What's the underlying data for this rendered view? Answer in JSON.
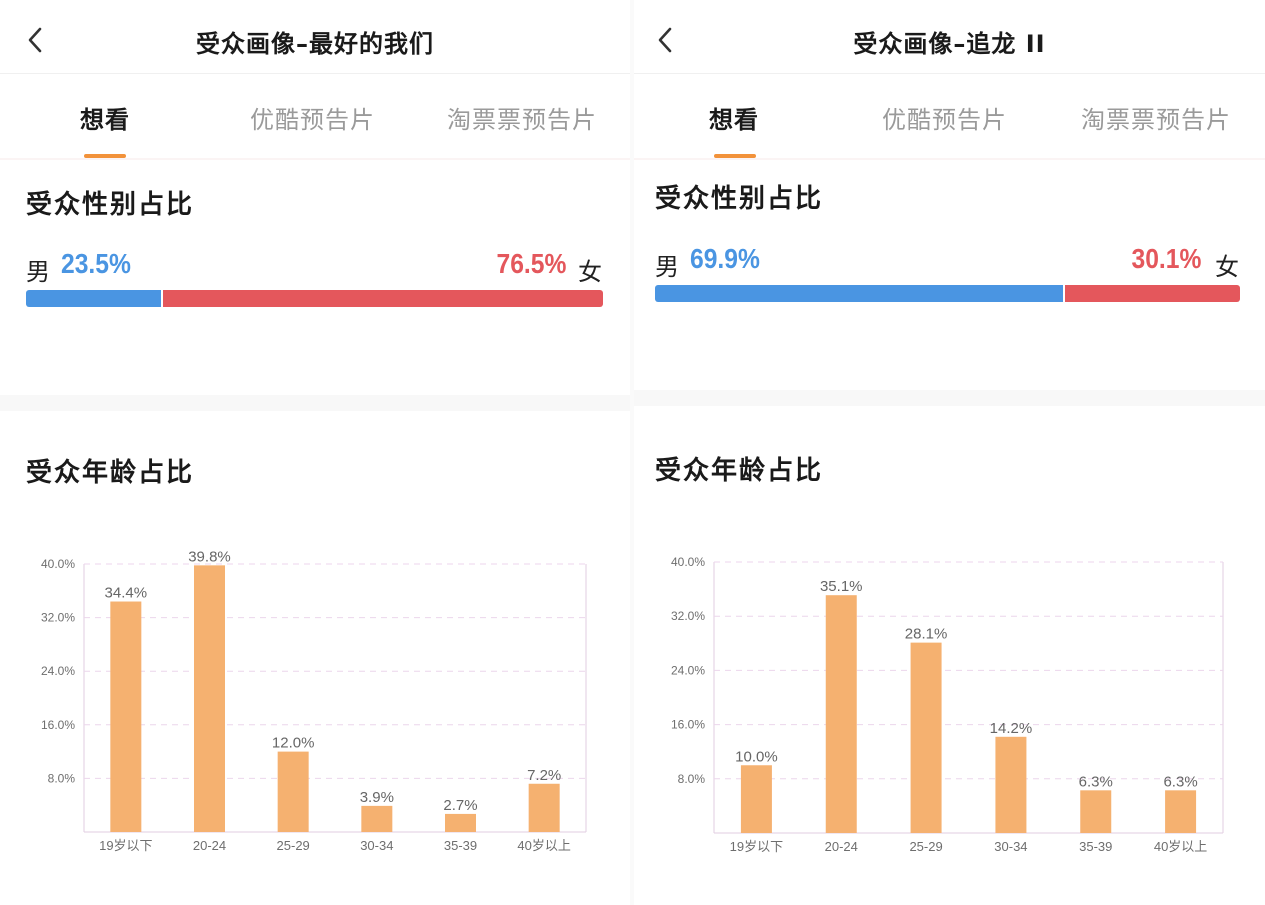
{
  "panels": [
    {
      "title": "受众画像–最好的我们",
      "tabs": [
        {
          "label": "想看",
          "active": true
        },
        {
          "label": "优酷预告片",
          "active": false
        },
        {
          "label": "淘票票预告片",
          "active": false
        }
      ],
      "gender": {
        "title": "受众性别占比",
        "male_label": "男",
        "male_value": "23.5%",
        "male_share": 0.235,
        "female_label": "女",
        "female_value": "76.5%",
        "female_share": 0.765
      },
      "age_title": "受众年龄占比",
      "chart_data": {
        "type": "bar",
        "categories": [
          "19岁以下",
          "20-24",
          "25-29",
          "30-34",
          "35-39",
          "40岁以上"
        ],
        "values": [
          34.4,
          39.8,
          12.0,
          3.9,
          2.7,
          7.2
        ],
        "data_labels": [
          "34.4%",
          "39.8%",
          "12.0%",
          "3.9%",
          "2.7%",
          "7.2%"
        ],
        "yticks": [
          "40.0%",
          "32.0%",
          "24.0%",
          "16.0%",
          "8.0%"
        ],
        "ytick_values": [
          40,
          32,
          24,
          16,
          8
        ],
        "ylim": [
          0,
          40
        ],
        "grid": true,
        "xlabel": "",
        "ylabel": "",
        "bar_color": "#f5b170"
      }
    },
    {
      "title": "受众画像–追龙 II",
      "tabs": [
        {
          "label": "想看",
          "active": true
        },
        {
          "label": "优酷预告片",
          "active": false
        },
        {
          "label": "淘票票预告片",
          "active": false
        }
      ],
      "gender": {
        "title": "受众性别占比",
        "male_label": "男",
        "male_value": "69.9%",
        "male_share": 0.699,
        "female_label": "女",
        "female_value": "30.1%",
        "female_share": 0.301
      },
      "age_title": "受众年龄占比",
      "chart_data": {
        "type": "bar",
        "categories": [
          "19岁以下",
          "20-24",
          "25-29",
          "30-34",
          "35-39",
          "40岁以上"
        ],
        "values": [
          10.0,
          35.1,
          28.1,
          14.2,
          6.3,
          6.3
        ],
        "data_labels": [
          "10.0%",
          "35.1%",
          "28.1%",
          "14.2%",
          "6.3%",
          "6.3%"
        ],
        "yticks": [
          "40.0%",
          "32.0%",
          "24.0%",
          "16.0%",
          "8.0%"
        ],
        "ytick_values": [
          40,
          32,
          24,
          16,
          8
        ],
        "ylim": [
          0,
          40
        ],
        "grid": true,
        "xlabel": "",
        "ylabel": "",
        "bar_color": "#f5b170"
      }
    }
  ],
  "colors": {
    "male": "#4a95e2",
    "female": "#e4575c",
    "accent": "#f2923a",
    "bar": "#f5b170"
  }
}
